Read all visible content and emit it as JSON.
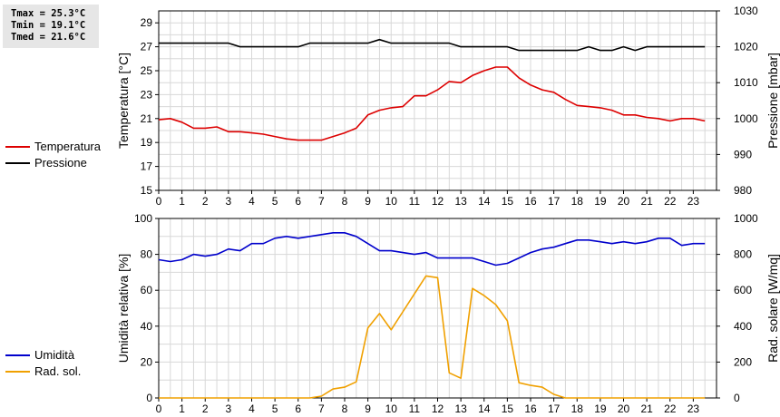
{
  "stats": {
    "tmax": "Tmax = 25.3°C",
    "tmin": "Tmin = 19.1°C",
    "tmed": "Tmed = 21.6°C"
  },
  "legend_top": [
    {
      "label": "Temperatura",
      "color": "#dd0000"
    },
    {
      "label": "Pressione",
      "color": "#000000"
    }
  ],
  "legend_bottom": [
    {
      "label": "Umidità",
      "color": "#0000cc"
    },
    {
      "label": "Rad. sol.",
      "color": "#f0a000"
    }
  ],
  "chart_data": [
    {
      "type": "line",
      "xlim": [
        0,
        24
      ],
      "x_ticks": [
        0,
        1,
        2,
        3,
        4,
        5,
        6,
        7,
        8,
        9,
        10,
        11,
        12,
        13,
        14,
        15,
        16,
        17,
        18,
        19,
        20,
        21,
        22,
        23
      ],
      "ylabel": "Temperatura [°C]",
      "ylim": [
        15,
        30
      ],
      "y_ticks": [
        15,
        17,
        19,
        21,
        23,
        25,
        27,
        29
      ],
      "y2label": "Pressione [mbar]",
      "y2lim": [
        980,
        1030
      ],
      "y2_ticks": [
        980,
        990,
        1000,
        1010,
        1020,
        1030
      ],
      "grid": true,
      "legend": "left",
      "series": [
        {
          "name": "Temperatura",
          "axis": "left",
          "color": "#dd0000",
          "x": [
            0,
            0.5,
            1,
            1.5,
            2,
            2.5,
            3,
            3.5,
            4,
            4.5,
            5,
            5.5,
            6,
            6.5,
            7,
            7.5,
            8,
            8.5,
            9,
            9.5,
            10,
            10.5,
            11,
            11.5,
            12,
            12.5,
            13,
            13.5,
            14,
            14.5,
            15,
            15.5,
            16,
            16.5,
            17,
            17.5,
            18,
            18.5,
            19,
            19.5,
            20,
            20.5,
            21,
            21.5,
            22,
            22.5,
            23,
            23.5
          ],
          "y": [
            20.9,
            21.0,
            20.7,
            20.2,
            20.2,
            20.3,
            19.9,
            19.9,
            19.8,
            19.7,
            19.5,
            19.3,
            19.2,
            19.2,
            19.2,
            19.5,
            19.8,
            20.2,
            21.3,
            21.7,
            21.9,
            22.0,
            22.9,
            22.9,
            23.4,
            24.1,
            24.0,
            24.6,
            25.0,
            25.3,
            25.3,
            24.4,
            23.8,
            23.4,
            23.2,
            22.6,
            22.1,
            22.0,
            21.9,
            21.7,
            21.3,
            21.3,
            21.1,
            21.0,
            20.8,
            21.0,
            21.0,
            20.8
          ]
        },
        {
          "name": "Pressione",
          "axis": "right",
          "color": "#000000",
          "x": [
            0,
            0.5,
            1,
            1.5,
            2,
            2.5,
            3,
            3.5,
            4,
            4.5,
            5,
            5.5,
            6,
            6.5,
            7,
            7.5,
            8,
            8.5,
            9,
            9.5,
            10,
            10.5,
            11,
            11.5,
            12,
            12.5,
            13,
            13.5,
            14,
            14.5,
            15,
            15.5,
            16,
            16.5,
            17,
            17.5,
            18,
            18.5,
            19,
            19.5,
            20,
            20.5,
            21,
            21.5,
            22,
            22.5,
            23,
            23.5
          ],
          "y": [
            1021,
            1021,
            1021,
            1021,
            1021,
            1021,
            1021,
            1020,
            1020,
            1020,
            1020,
            1020,
            1020,
            1021,
            1021,
            1021,
            1021,
            1021,
            1021,
            1022,
            1021,
            1021,
            1021,
            1021,
            1021,
            1021,
            1020,
            1020,
            1020,
            1020,
            1020,
            1019,
            1019,
            1019,
            1019,
            1019,
            1019,
            1020,
            1019,
            1019,
            1020,
            1019,
            1020,
            1020,
            1020,
            1020,
            1020,
            1020
          ]
        }
      ]
    },
    {
      "type": "line",
      "xlim": [
        0,
        24
      ],
      "x_ticks": [
        0,
        1,
        2,
        3,
        4,
        5,
        6,
        7,
        8,
        9,
        10,
        11,
        12,
        13,
        14,
        15,
        16,
        17,
        18,
        19,
        20,
        21,
        22,
        23
      ],
      "ylabel": "Umidità relativa [%]",
      "ylim": [
        0,
        100
      ],
      "y_ticks": [
        0,
        20,
        40,
        60,
        80,
        100
      ],
      "y2label": "Rad. solare [W/mq]",
      "y2lim": [
        0,
        1000
      ],
      "y2_ticks": [
        0,
        200,
        400,
        600,
        800,
        1000
      ],
      "grid": true,
      "legend": "left",
      "series": [
        {
          "name": "Umidità",
          "axis": "left",
          "color": "#0000cc",
          "x": [
            0,
            0.5,
            1,
            1.5,
            2,
            2.5,
            3,
            3.5,
            4,
            4.5,
            5,
            5.5,
            6,
            6.5,
            7,
            7.5,
            8,
            8.5,
            9,
            9.5,
            10,
            10.5,
            11,
            11.5,
            12,
            12.5,
            13,
            13.5,
            14,
            14.5,
            15,
            15.5,
            16,
            16.5,
            17,
            17.5,
            18,
            18.5,
            19,
            19.5,
            20,
            20.5,
            21,
            21.5,
            22,
            22.5,
            23,
            23.5
          ],
          "y": [
            77,
            76,
            77,
            80,
            79,
            80,
            83,
            82,
            86,
            86,
            89,
            90,
            89,
            90,
            91,
            92,
            92,
            90,
            86,
            82,
            82,
            81,
            80,
            81,
            78,
            78,
            78,
            78,
            76,
            74,
            75,
            78,
            81,
            83,
            84,
            86,
            88,
            88,
            87,
            86,
            87,
            86,
            87,
            89,
            89,
            85,
            86,
            86
          ]
        },
        {
          "name": "Rad. sol.",
          "axis": "right",
          "color": "#f0a000",
          "x": [
            0,
            0.5,
            1,
            1.5,
            2,
            2.5,
            3,
            3.5,
            4,
            4.5,
            5,
            5.5,
            6,
            6.5,
            7,
            7.5,
            8,
            8.5,
            9,
            9.5,
            10,
            10.5,
            11,
            11.5,
            12,
            12.5,
            13,
            13.5,
            14,
            14.5,
            15,
            15.5,
            16,
            16.5,
            17,
            17.5,
            18,
            18.5,
            19,
            19.5,
            20,
            20.5,
            21,
            21.5,
            22,
            22.5,
            23,
            23.5
          ],
          "y": [
            0,
            0,
            0,
            0,
            0,
            0,
            0,
            0,
            0,
            0,
            0,
            0,
            0,
            0,
            10,
            50,
            60,
            90,
            390,
            470,
            380,
            480,
            580,
            680,
            670,
            140,
            110,
            610,
            570,
            520,
            430,
            85,
            70,
            60,
            20,
            0,
            0,
            0,
            0,
            0,
            0,
            0,
            0,
            0,
            0,
            0,
            0,
            0
          ]
        }
      ]
    }
  ]
}
